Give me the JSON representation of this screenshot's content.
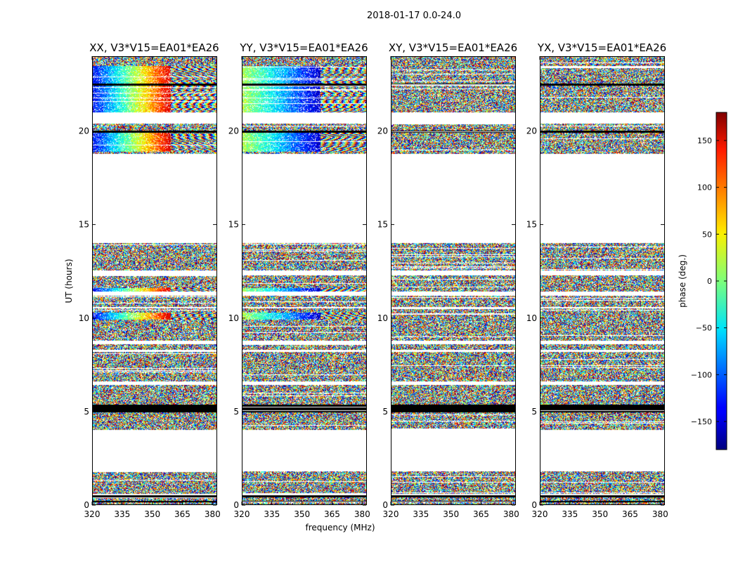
{
  "figure": {
    "suptitle": "2018-01-17 0.0-24.0",
    "xlabel": "frequency (MHz)",
    "ylabel": "UT (hours)"
  },
  "chart_data": {
    "type": "heatmap",
    "panels": [
      {
        "title": "XX, V3*V15=EA01*EA26",
        "pol": "XX",
        "coherent": true
      },
      {
        "title": "YY, V3*V15=EA01*EA26",
        "pol": "YY",
        "coherent": true
      },
      {
        "title": "XY, V3*V15=EA01*EA26",
        "pol": "XY",
        "coherent": false
      },
      {
        "title": "YX, V3*V15=EA01*EA26",
        "pol": "YX",
        "coherent": false
      }
    ],
    "x": {
      "label": "frequency (MHz)",
      "range": [
        320,
        382
      ],
      "ticks": [
        320,
        335,
        350,
        365,
        380
      ],
      "tick_labels": [
        "320",
        "335",
        "350",
        "365",
        "380"
      ]
    },
    "y": {
      "label": "UT (hours)",
      "range": [
        0,
        24
      ],
      "ticks": [
        0,
        5,
        10,
        15,
        20
      ],
      "tick_labels": [
        "0",
        "5",
        "10",
        "15",
        "20"
      ]
    },
    "colorbar": {
      "label": "phase (deg.)",
      "range": [
        -180,
        180
      ],
      "ticks": [
        -150,
        -100,
        -50,
        0,
        50,
        100,
        150
      ],
      "tick_labels": [
        "−150",
        "−100",
        "−50",
        "0",
        "50",
        "100",
        "150"
      ],
      "colormap": "jet"
    },
    "data_blocks_ut": [
      [
        0.0,
        0.5
      ],
      [
        0.6,
        1.8
      ],
      [
        4.0,
        6.4
      ],
      [
        6.6,
        8.6
      ],
      [
        8.8,
        11.2
      ],
      [
        11.4,
        14.0
      ],
      [
        18.8,
        20.4
      ],
      [
        21.0,
        24.0
      ]
    ],
    "gaps_ut": [
      [
        1.8,
        4.0
      ],
      [
        14.0,
        18.8
      ],
      [
        20.4,
        21.0
      ]
    ],
    "black_bands_ut": [
      [
        0.15,
        0.2
      ],
      [
        0.4,
        0.55
      ],
      [
        4.95,
        5.35
      ],
      [
        19.9,
        20.05
      ],
      [
        22.45,
        22.55
      ]
    ],
    "white_bands_ut": [
      [
        12.3,
        12.55
      ],
      [
        10.5,
        10.6
      ],
      [
        8.2,
        8.3
      ],
      [
        20.4,
        21.0
      ]
    ]
  }
}
